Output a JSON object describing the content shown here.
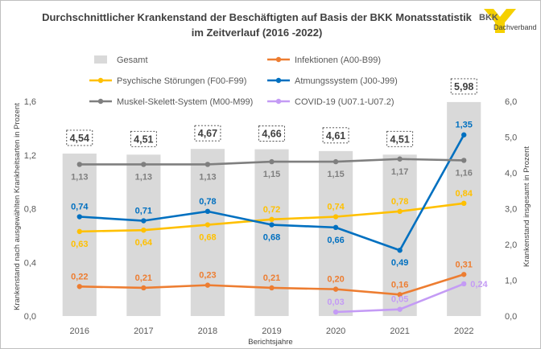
{
  "page": {
    "title_line1": "Durchschnittlicher Krankenstand der Beschäftigten auf Basis der BKK Monatsstatistik",
    "title_line2": "im Zeitverlauf (2016 -2022)",
    "logo": {
      "mark": "BKK",
      "sub": "Dachverband"
    }
  },
  "chart_data": {
    "type": "bar+line",
    "title": "Durchschnittlicher Krankenstand der Beschäftigten auf Basis der BKK Monatsstatistik im Zeitverlauf (2016 -2022)",
    "xlabel": "Berichtsjahre",
    "ylabel_left": "Krankenstand nach ausgewählten Krankheitsarten in Prozent",
    "ylabel_right": "Krankenstand insgesamt in Prozent",
    "categories": [
      "2016",
      "2017",
      "2018",
      "2019",
      "2020",
      "2021",
      "2022"
    ],
    "ylim_left": [
      0,
      1.6
    ],
    "ylim_right": [
      0,
      6.0
    ],
    "yticks_left": [
      "0,0",
      "0,4",
      "0,8",
      "1,2",
      "1,6"
    ],
    "yticks_right": [
      "0,0",
      "1,0",
      "2,0",
      "3,0",
      "4,0",
      "5,0",
      "6,0"
    ],
    "gridlines": false,
    "legend_position": "top",
    "bar_series": {
      "name": "Gesamt",
      "axis": "right",
      "color": "#d9d9d9",
      "values": [
        4.54,
        4.51,
        4.67,
        4.66,
        4.61,
        4.51,
        5.98
      ],
      "labels": [
        "4,54",
        "4,51",
        "4,67",
        "4,66",
        "4,61",
        "4,51",
        "5,98"
      ]
    },
    "line_series": [
      {
        "name": "Infektionen (A00-B99)",
        "color": "#ed7d31",
        "start": 0,
        "values": [
          0.22,
          0.21,
          0.23,
          0.21,
          0.2,
          0.16,
          0.31
        ],
        "labels": [
          "0,22",
          "0,21",
          "0,23",
          "0,21",
          "0,20",
          "0,16",
          "0,31"
        ],
        "label_pos": [
          "above",
          "above",
          "above",
          "above",
          "above",
          "above",
          "above"
        ]
      },
      {
        "name": "Psychische Störungen (F00-F99)",
        "color": "#ffc000",
        "start": 0,
        "values": [
          0.63,
          0.64,
          0.68,
          0.72,
          0.74,
          0.78,
          0.84
        ],
        "labels": [
          "0,63",
          "0,64",
          "0,68",
          "0,72",
          "0,74",
          "0,78",
          "0,84"
        ],
        "label_pos": [
          "below",
          "below",
          "below",
          "above",
          "above",
          "above",
          "above"
        ]
      },
      {
        "name": "Atmungssystem (J00-J99)",
        "color": "#0070c0",
        "start": 0,
        "values": [
          0.74,
          0.71,
          0.78,
          0.68,
          0.66,
          0.49,
          1.35
        ],
        "labels": [
          "0,74",
          "0,71",
          "0,78",
          "0,68",
          "0,66",
          "0,49",
          "1,35"
        ],
        "label_pos": [
          "above",
          "above",
          "above",
          "below",
          "below",
          "below",
          "above"
        ]
      },
      {
        "name": "Muskel-Skelett-System (M00-M99)",
        "color": "#7f7f7f",
        "start": 0,
        "values": [
          1.13,
          1.13,
          1.13,
          1.15,
          1.15,
          1.17,
          1.16
        ],
        "labels": [
          "1,13",
          "1,13",
          "1,13",
          "1,15",
          "1,15",
          "1,17",
          "1,16"
        ],
        "label_pos": [
          "below",
          "below",
          "below",
          "below",
          "below",
          "below",
          "below"
        ]
      },
      {
        "name": "COVID-19 (U07.1-U07.2)",
        "color": "#c49bf5",
        "start": 4,
        "values": [
          0.03,
          0.05,
          0.24
        ],
        "labels": [
          "0,03",
          "0,05",
          "0,24"
        ],
        "label_pos": [
          "above",
          "above",
          "right"
        ]
      }
    ],
    "legend": [
      {
        "name": "Gesamt",
        "kind": "bar",
        "color": "#d9d9d9"
      },
      {
        "name": "Infektionen (A00-B99)",
        "kind": "line",
        "color": "#ed7d31"
      },
      {
        "name": "Psychische Störungen (F00-F99)",
        "kind": "line",
        "color": "#ffc000"
      },
      {
        "name": "Atmungssystem (J00-J99)",
        "kind": "line",
        "color": "#0070c0"
      },
      {
        "name": "Muskel-Skelett-System (M00-M99)",
        "kind": "line",
        "color": "#7f7f7f"
      },
      {
        "name": "COVID-19 (U07.1-U07.2)",
        "kind": "line",
        "color": "#c49bf5"
      }
    ]
  }
}
